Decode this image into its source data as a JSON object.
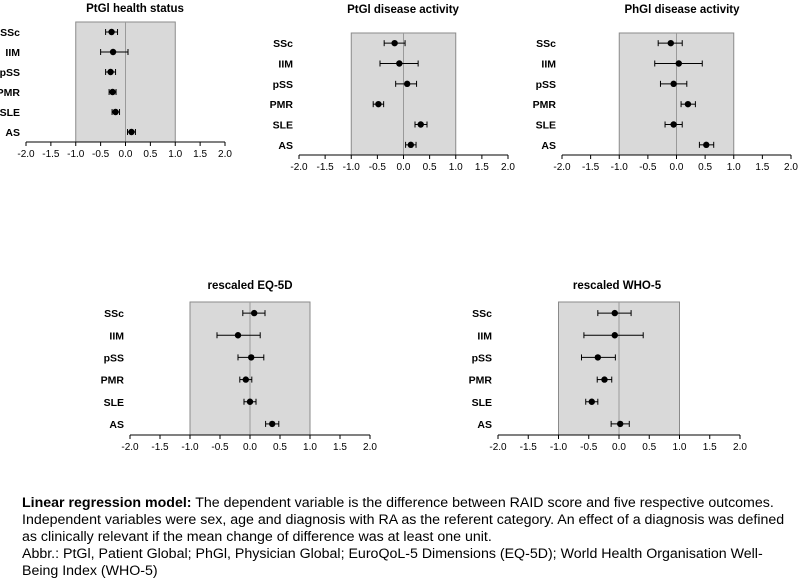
{
  "chart_data": [
    {
      "type": "forest",
      "title": "PtGl health status",
      "categories": [
        "SSc",
        "IIM",
        "pSS",
        "PMR",
        "SLE",
        "AS"
      ],
      "estimate": [
        -0.28,
        -0.25,
        -0.3,
        -0.26,
        -0.2,
        0.12
      ],
      "ci_low": [
        -0.4,
        -0.5,
        -0.4,
        -0.33,
        -0.27,
        0.04
      ],
      "ci_high": [
        -0.16,
        0.05,
        -0.2,
        -0.19,
        -0.12,
        0.2
      ],
      "xlim": [
        -2.0,
        2.0
      ],
      "xticks": [
        "-2.0",
        "-1.5",
        "-1.0",
        "-0.5",
        "0.0",
        "0.5",
        "1.0",
        "1.5",
        "2.0"
      ],
      "shaded_region": [
        -1.0,
        1.0
      ],
      "reference_line": 0
    },
    {
      "type": "forest",
      "title": "PtGl disease activity",
      "categories": [
        "SSc",
        "IIM",
        "pSS",
        "PMR",
        "SLE",
        "AS"
      ],
      "estimate": [
        -0.17,
        -0.08,
        0.07,
        -0.48,
        0.33,
        0.14
      ],
      "ci_low": [
        -0.37,
        -0.45,
        -0.15,
        -0.58,
        0.22,
        0.04
      ],
      "ci_high": [
        0.03,
        0.28,
        0.25,
        -0.38,
        0.45,
        0.24
      ],
      "xlim": [
        -2.0,
        2.0
      ],
      "xticks": [
        "-2.0",
        "-1.5",
        "-1.0",
        "-0.5",
        "0.0",
        "0.5",
        "1.0",
        "1.5",
        "2.0"
      ],
      "shaded_region": [
        -1.0,
        1.0
      ],
      "reference_line": 0
    },
    {
      "type": "forest",
      "title": "PhGl disease activity",
      "categories": [
        "SSc",
        "IIM",
        "pSS",
        "PMR",
        "SLE",
        "AS"
      ],
      "estimate": [
        -0.1,
        0.04,
        -0.05,
        0.2,
        -0.05,
        0.52
      ],
      "ci_low": [
        -0.32,
        -0.38,
        -0.28,
        0.08,
        -0.2,
        0.4
      ],
      "ci_high": [
        0.1,
        0.45,
        0.18,
        0.33,
        0.1,
        0.65
      ],
      "xlim": [
        -2.0,
        2.0
      ],
      "xticks": [
        "-2.0",
        "-1.5",
        "-1.0",
        "-0.5",
        "0.0",
        "0.5",
        "1.0",
        "1.5",
        "2.0"
      ],
      "shaded_region": [
        -1.0,
        1.0
      ],
      "reference_line": 0
    },
    {
      "type": "forest",
      "title": "rescaled EQ-5D",
      "categories": [
        "SSc",
        "IIM",
        "pSS",
        "PMR",
        "SLE",
        "AS"
      ],
      "estimate": [
        0.07,
        -0.2,
        0.02,
        -0.07,
        0.0,
        0.37
      ],
      "ci_low": [
        -0.12,
        -0.55,
        -0.2,
        -0.17,
        -0.1,
        0.26
      ],
      "ci_high": [
        0.25,
        0.17,
        0.23,
        0.03,
        0.1,
        0.48
      ],
      "xlim": [
        -2.0,
        2.0
      ],
      "xticks": [
        "-2.0",
        "-1.5",
        "-1.0",
        "-0.5",
        "0.0",
        "0.5",
        "1.0",
        "1.5",
        "2.0"
      ],
      "shaded_region": [
        -1.0,
        1.0
      ],
      "reference_line": 0
    },
    {
      "type": "forest",
      "title": "rescaled WHO-5",
      "categories": [
        "SSc",
        "IIM",
        "pSS",
        "PMR",
        "SLE",
        "AS"
      ],
      "estimate": [
        -0.07,
        -0.07,
        -0.35,
        -0.24,
        -0.45,
        0.02
      ],
      "ci_low": [
        -0.35,
        -0.58,
        -0.62,
        -0.36,
        -0.55,
        -0.13
      ],
      "ci_high": [
        0.2,
        0.4,
        -0.06,
        -0.12,
        -0.35,
        0.17
      ],
      "xlim": [
        -2.0,
        2.0
      ],
      "xticks": [
        "-2.0",
        "-1.5",
        "-1.0",
        "-0.5",
        "0.0",
        "0.5",
        "1.0",
        "1.5",
        "2.0"
      ],
      "shaded_region": [
        -1.0,
        1.0
      ],
      "reference_line": 0
    }
  ],
  "caption": {
    "lead": "Linear regression model:",
    "body": " The dependent variable is the difference between RAID score and five respective outcomes. Independent variables were sex, age and diagnosis with RA as the referent category. An effect of a diagnosis was defined as clinically relevant if the mean change of difference was at least one unit.",
    "abbreviations": "Abbr.: PtGl, Patient Global; PhGl, Physician Global; EuroQoL-5 Dimensions (EQ-5D); World Health Organisation Well-Being Index (WHO-5)"
  },
  "colors": {
    "shade": "#d9d9d9",
    "frame": "#8a8a8a",
    "ink": "#000000"
  }
}
